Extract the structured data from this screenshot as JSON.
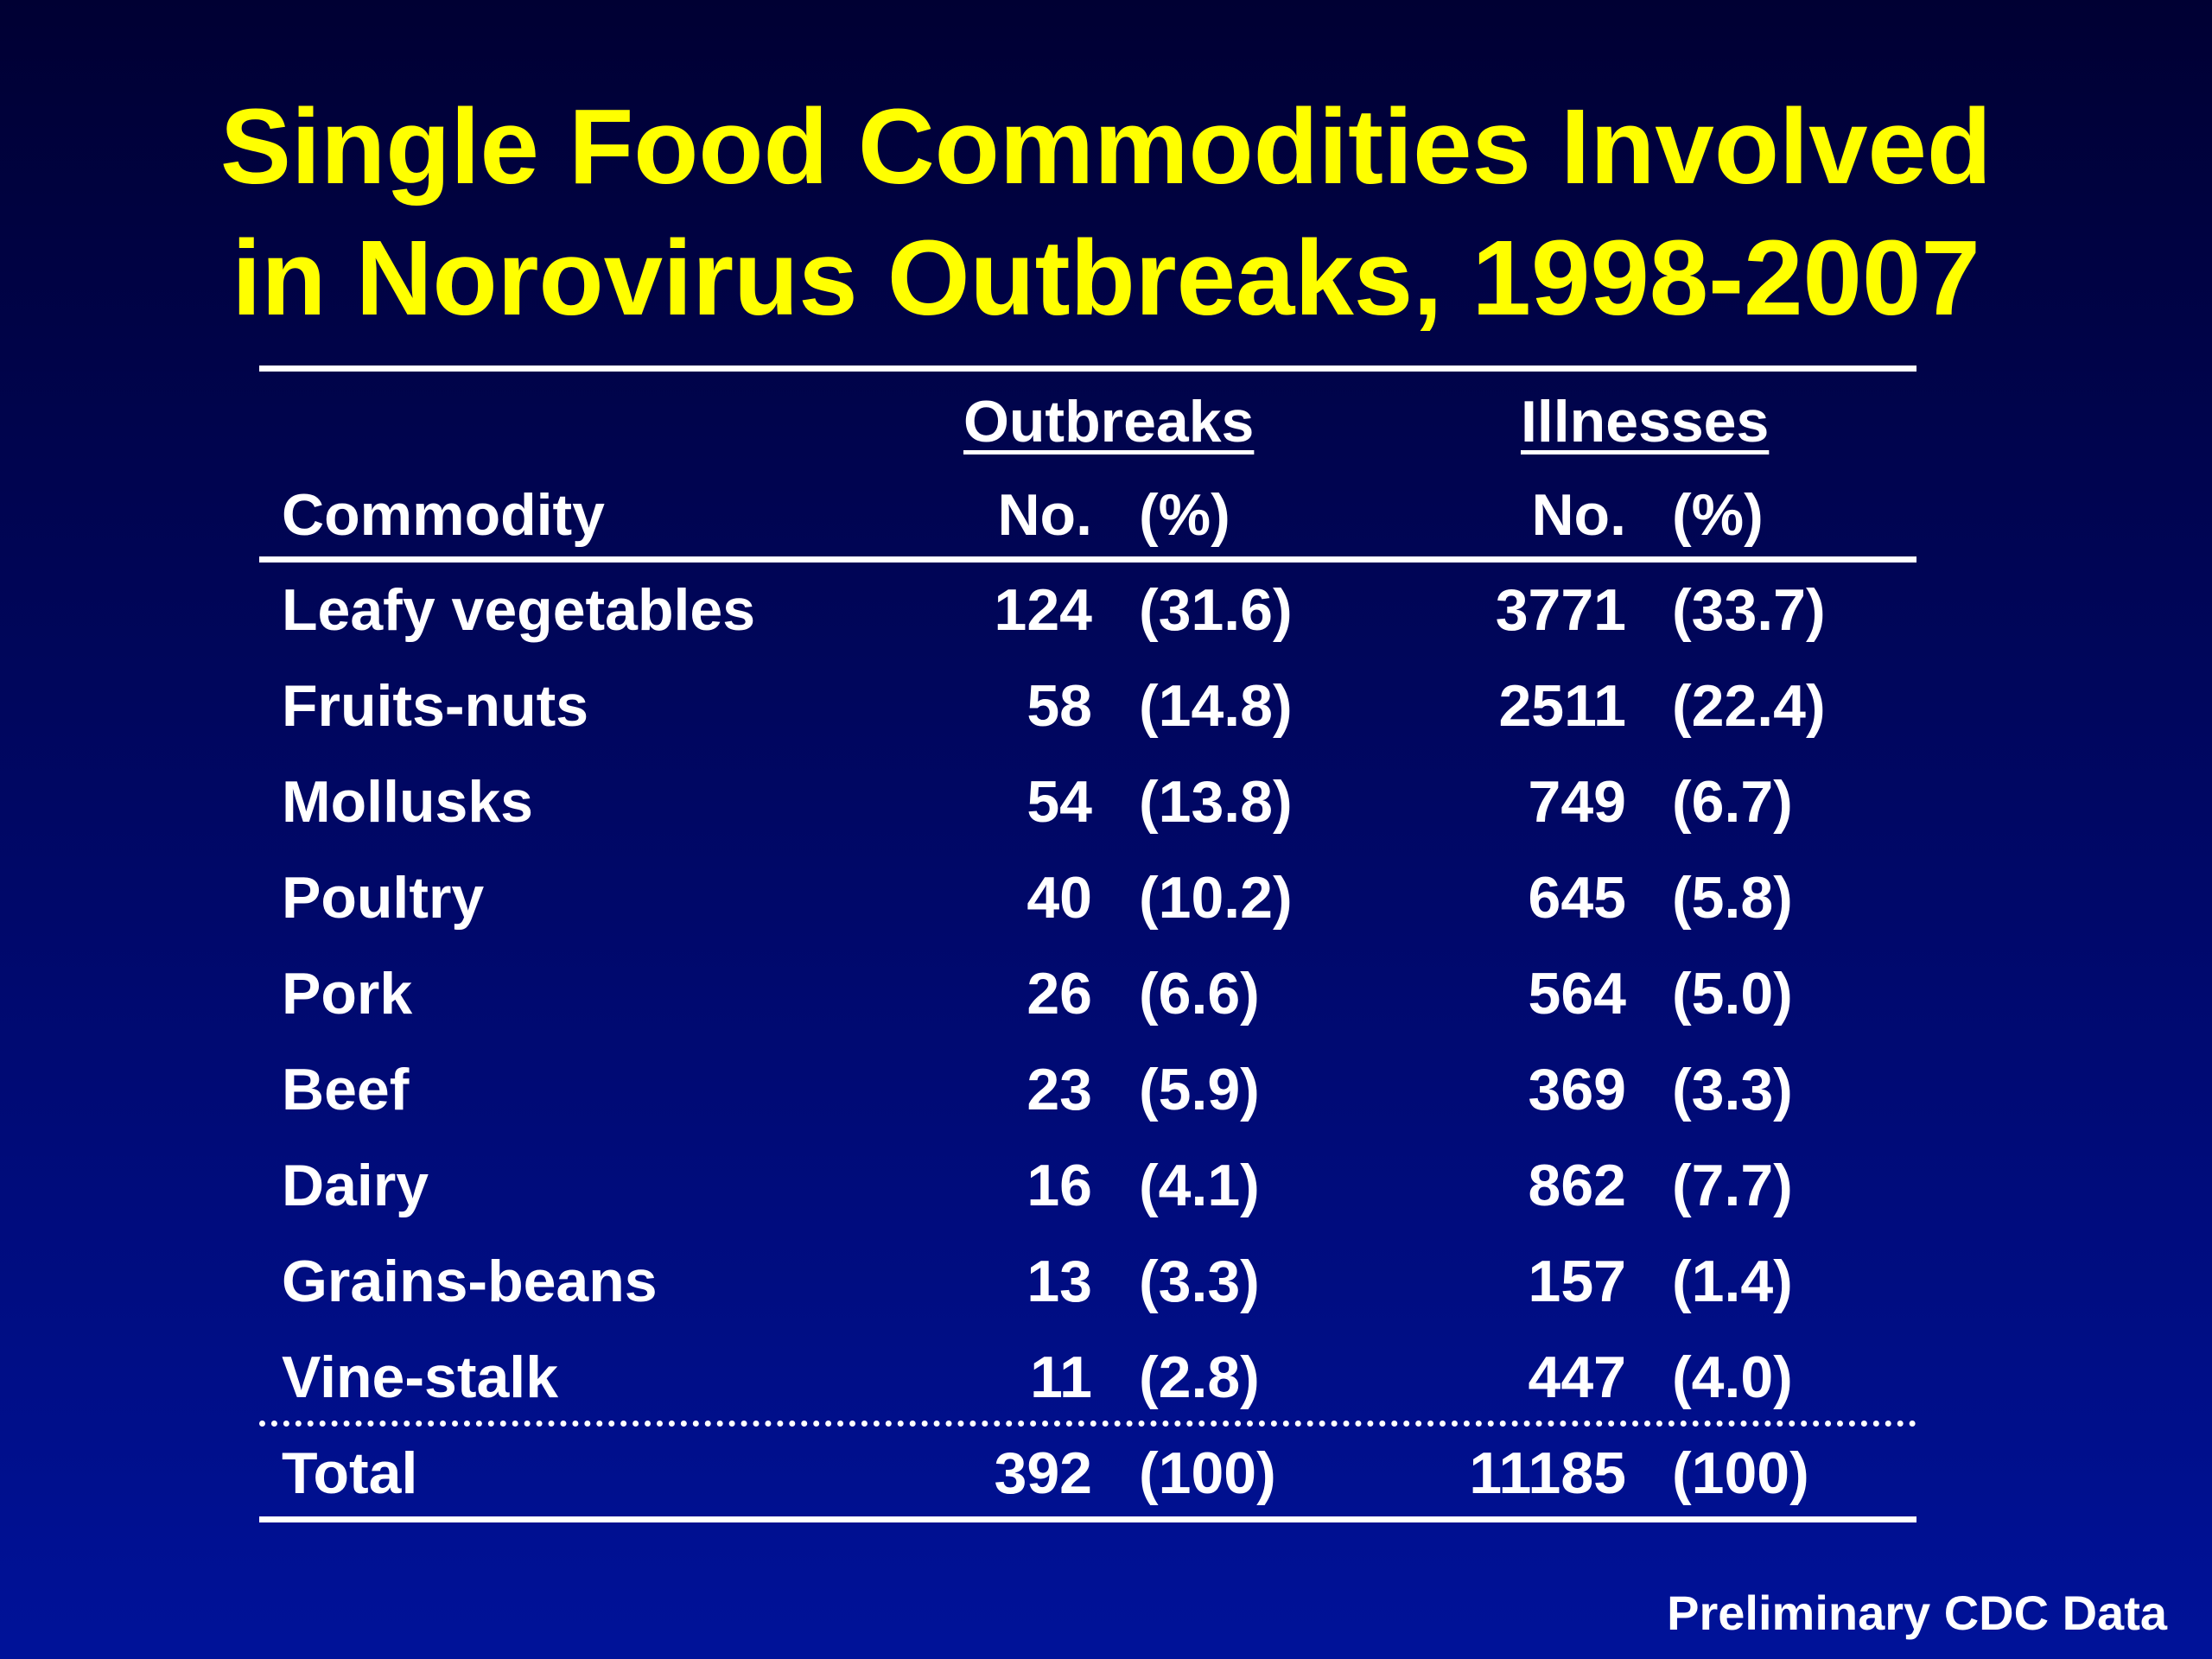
{
  "title": {
    "line1": "Single Food Commodities Involved",
    "line2": "in Norovirus Outbreaks, 1998-2007"
  },
  "table": {
    "group_headers": {
      "outbreaks": "Outbreaks",
      "illnesses": "Illnesses"
    },
    "column_headers": {
      "commodity": "Commodity",
      "outbreaks_no": "No.",
      "outbreaks_pct": "(%)",
      "illnesses_no": "No.",
      "illnesses_pct": "(%)"
    },
    "rows": [
      {
        "commodity": "Leafy vegetables",
        "outbreaks_no": "124",
        "outbreaks_pct": "(31.6)",
        "illnesses_no": "3771",
        "illnesses_pct": "(33.7)"
      },
      {
        "commodity": "Fruits-nuts",
        "outbreaks_no": "58",
        "outbreaks_pct": "(14.8)",
        "illnesses_no": "2511",
        "illnesses_pct": "(22.4)"
      },
      {
        "commodity": "Mollusks",
        "outbreaks_no": "54",
        "outbreaks_pct": "(13.8)",
        "illnesses_no": "749",
        "illnesses_pct": "(6.7)"
      },
      {
        "commodity": "Poultry",
        "outbreaks_no": "40",
        "outbreaks_pct": "(10.2)",
        "illnesses_no": "645",
        "illnesses_pct": "(5.8)"
      },
      {
        "commodity": "Pork",
        "outbreaks_no": "26",
        "outbreaks_pct": "(6.6)",
        "illnesses_no": "564",
        "illnesses_pct": "(5.0)"
      },
      {
        "commodity": "Beef",
        "outbreaks_no": "23",
        "outbreaks_pct": "(5.9)",
        "illnesses_no": "369",
        "illnesses_pct": "(3.3)"
      },
      {
        "commodity": "Dairy",
        "outbreaks_no": "16",
        "outbreaks_pct": "(4.1)",
        "illnesses_no": "862",
        "illnesses_pct": "(7.7)"
      },
      {
        "commodity": "Grains-beans",
        "outbreaks_no": "13",
        "outbreaks_pct": "(3.3)",
        "illnesses_no": "157",
        "illnesses_pct": "(1.4)"
      },
      {
        "commodity": "Vine-stalk",
        "outbreaks_no": "11",
        "outbreaks_pct": "(2.8)",
        "illnesses_no": "447",
        "illnesses_pct": "(4.0)"
      }
    ],
    "total": {
      "commodity": "Total",
      "outbreaks_no": "392",
      "outbreaks_pct": "(100)",
      "illnesses_no": "11185",
      "illnesses_pct": "(100)"
    }
  },
  "footer": "Preliminary CDC Data",
  "colors": {
    "title": "#ffff00",
    "text": "#ffffff",
    "background_top": "#000033",
    "background_bottom": "#001299"
  }
}
